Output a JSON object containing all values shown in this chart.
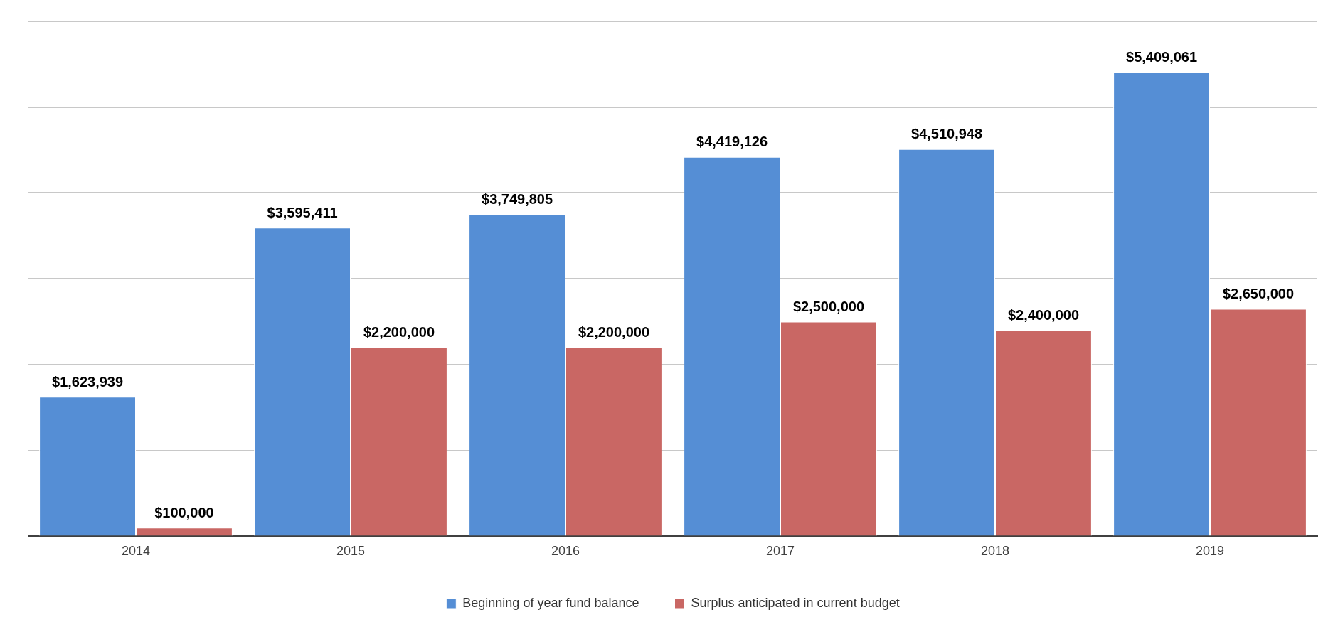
{
  "chart_data": {
    "type": "bar",
    "categories": [
      "2014",
      "2015",
      "2016",
      "2017",
      "2018",
      "2019"
    ],
    "series": [
      {
        "name": "Beginning of year fund balance",
        "color": "#558ed5",
        "values": [
          1623939,
          3595411,
          3749805,
          4419126,
          4510948,
          5409061
        ],
        "value_labels": [
          "$1,623,939",
          "$3,595,411",
          "$3,749,805",
          "$4,419,126",
          "$4,510,948",
          "$5,409,061"
        ]
      },
      {
        "name": "Surplus anticipated in current budget",
        "color": "#c96764",
        "values": [
          100000,
          2200000,
          2200000,
          2500000,
          2400000,
          2650000
        ],
        "value_labels": [
          "$100,000",
          "$2,200,000",
          "$2,200,000",
          "$2,500,000",
          "$2,400,000",
          "$2,650,000"
        ]
      }
    ],
    "tick_labels": "x",
    "grid": "y",
    "legend": "bottom"
  }
}
